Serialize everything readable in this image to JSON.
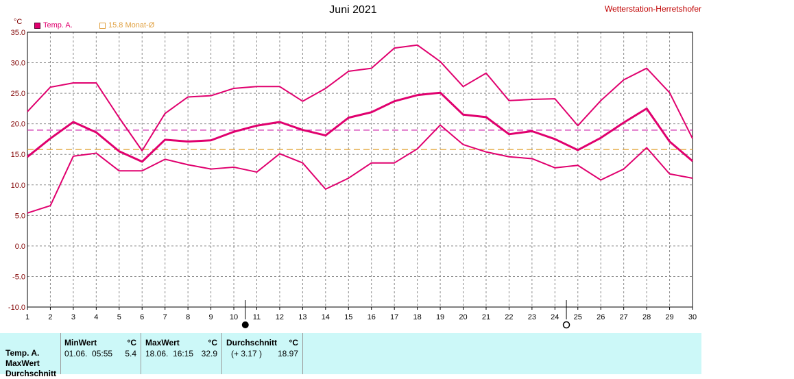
{
  "header": {
    "title": "Juni 2021",
    "station": "Wetterstation-Herretshofer",
    "unit": "°C"
  },
  "legend": [
    {
      "label": "Temp. A.",
      "color": "#e0006e",
      "style": "filled"
    },
    {
      "label": "15.8 Monat-Ø",
      "color": "#e0a040",
      "style": "outline"
    }
  ],
  "chart_data": {
    "type": "line",
    "title": "Juni 2021",
    "ylabel": "°C",
    "x": [
      1,
      2,
      3,
      4,
      5,
      6,
      7,
      8,
      9,
      10,
      11,
      12,
      13,
      14,
      15,
      16,
      17,
      18,
      19,
      20,
      21,
      22,
      23,
      24,
      25,
      26,
      27,
      28,
      29,
      30
    ],
    "xlim": [
      1,
      30
    ],
    "ylim": [
      -10,
      35
    ],
    "yticks": [
      -10,
      -5,
      0,
      5,
      10,
      15,
      20,
      25,
      30,
      35
    ],
    "ytick_labels": [
      "-10.0",
      "-5.0",
      "0.0",
      "5.0",
      "10.0",
      "15.0",
      "20.0",
      "25.0",
      "30.0",
      "35.0"
    ],
    "grid": true,
    "series": [
      {
        "name": "Max",
        "color": "#e0006e",
        "width": 2,
        "values": [
          22.0,
          26.0,
          26.7,
          26.7,
          21.0,
          15.6,
          21.7,
          24.4,
          24.6,
          25.8,
          26.1,
          26.1,
          23.7,
          25.8,
          28.6,
          29.1,
          32.4,
          32.9,
          30.2,
          26.1,
          28.3,
          23.8,
          24.0,
          24.1,
          19.7,
          23.8,
          27.2,
          29.1,
          25.1,
          17.6
        ]
      },
      {
        "name": "Temp. A.",
        "color": "#e0006e",
        "width": 3,
        "values": [
          14.6,
          17.6,
          20.3,
          18.6,
          15.5,
          13.8,
          17.4,
          17.1,
          17.3,
          18.7,
          19.7,
          20.3,
          19.0,
          18.1,
          21.0,
          21.9,
          23.7,
          24.7,
          25.1,
          21.5,
          21.1,
          18.3,
          18.8,
          17.5,
          15.7,
          17.7,
          20.2,
          22.5,
          17.1,
          13.9
        ]
      },
      {
        "name": "Min",
        "color": "#e0006e",
        "width": 2,
        "values": [
          5.4,
          6.6,
          14.7,
          15.2,
          12.3,
          12.3,
          14.2,
          13.3,
          12.6,
          12.9,
          12.1,
          15.1,
          13.6,
          9.3,
          11.1,
          13.6,
          13.6,
          15.9,
          19.8,
          16.6,
          15.4,
          14.6,
          14.3,
          12.8,
          13.2,
          10.8,
          12.6,
          16.1,
          11.8,
          11.1
        ]
      }
    ],
    "reference_lines": [
      {
        "label": "Durchschnitt",
        "value": 18.97,
        "color": "#cc22aa"
      },
      {
        "label": "15.8 Monat-Ø",
        "value": 15.8,
        "color": "#e0a030"
      }
    ],
    "moon_markers": [
      {
        "day": 10,
        "phase": "new-moon"
      },
      {
        "day": 24,
        "phase": "full-moon"
      }
    ]
  },
  "stats": {
    "row_labels": [
      "Temp. A.",
      "MaxWert",
      "Durchschnitt"
    ],
    "columns": [
      {
        "header": "MinWert",
        "unit": "°C",
        "date_time": "01.06.  05:55",
        "value": "5.4"
      },
      {
        "header": "MaxWert",
        "unit": "°C",
        "date_time": "18.06.  16:15",
        "value": "32.9"
      },
      {
        "header": "Durchschnitt",
        "unit": "°C",
        "date_time": "(+ 3.17 )",
        "value": "18.97"
      }
    ]
  }
}
